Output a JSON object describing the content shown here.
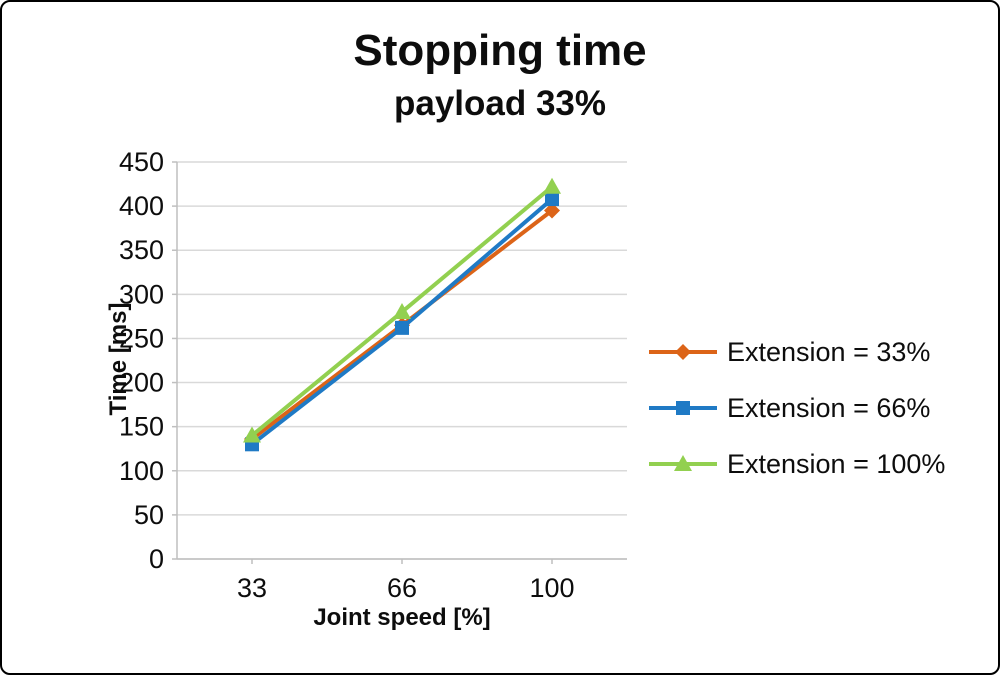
{
  "chart_data": {
    "type": "line",
    "title": "Stopping time",
    "subtitle": "payload 33%",
    "xlabel": "Joint speed [%]",
    "ylabel": "Time [ms]",
    "categories": [
      "33",
      "66",
      "100"
    ],
    "ylim": [
      0,
      450
    ],
    "ytick_step": 50,
    "grid": "horizontal-gridlines",
    "legend_position": "right",
    "colors": {
      "gridline": "#d9d9d9",
      "axis": "#bfbfbf",
      "text": "#0d0d0d"
    },
    "series": [
      {
        "name": "Extension = 33%",
        "marker": "diamond",
        "color": "#DC6418",
        "values": [
          136,
          265,
          395
        ]
      },
      {
        "name": "Extension = 66%",
        "marker": "square",
        "color": "#1F7AC5",
        "values": [
          130,
          262,
          408
        ]
      },
      {
        "name": "Extension = 100%",
        "marker": "triangle",
        "color": "#92D050",
        "values": [
          140,
          280,
          422
        ]
      }
    ]
  }
}
